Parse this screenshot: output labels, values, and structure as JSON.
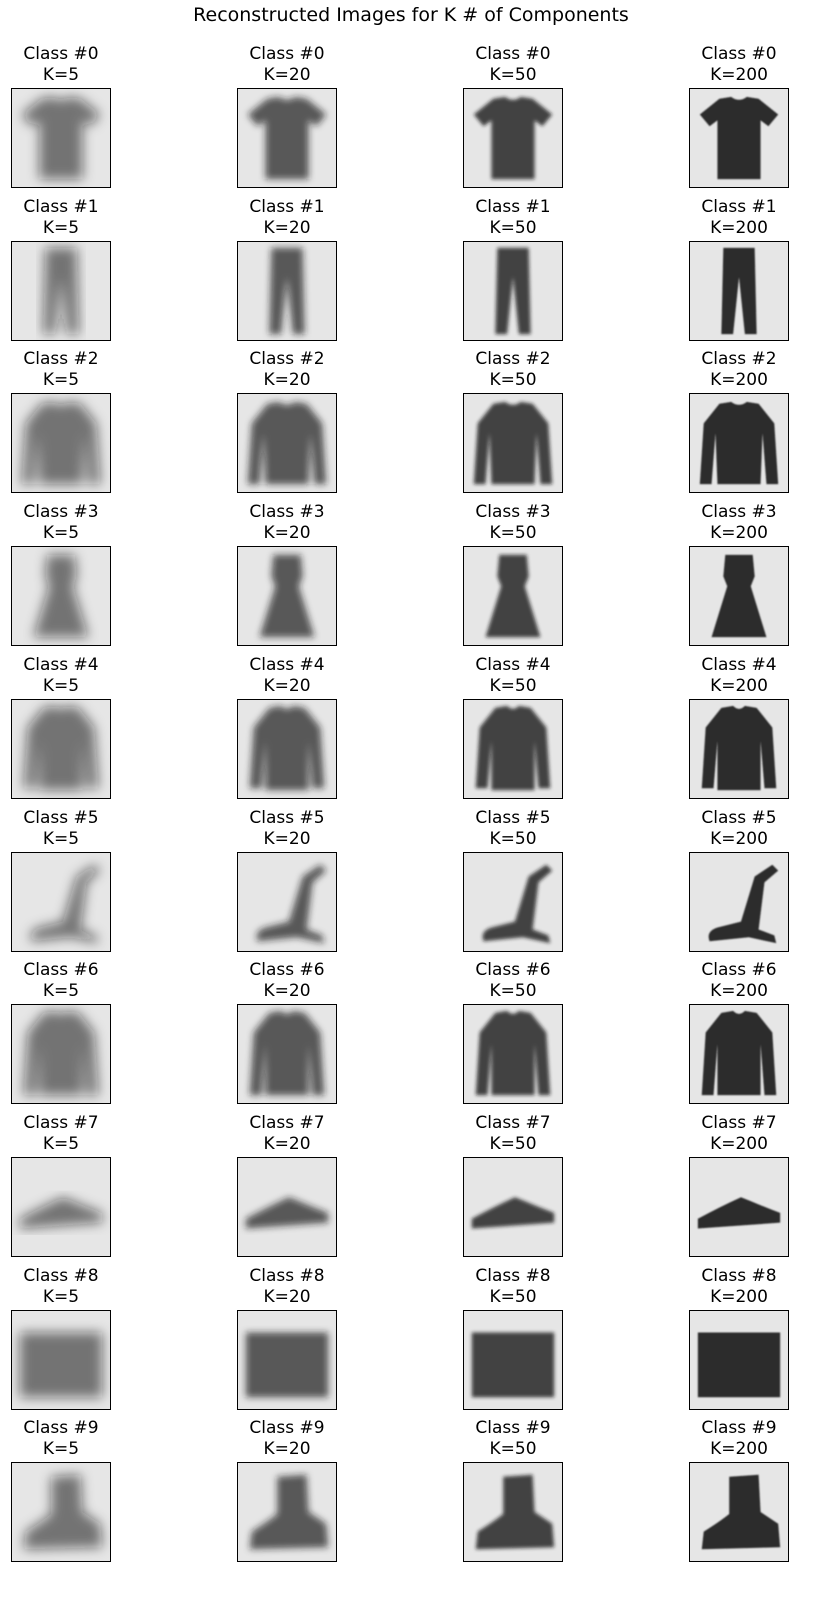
{
  "figure_title": "Reconstructed Images for K # of Components",
  "k_values": [
    5,
    20,
    50,
    200
  ],
  "columns": [
    "K=5",
    "K=20",
    "K=50",
    "K=200"
  ],
  "rows": [
    {
      "class_label": "Class #0",
      "garment": "tshirt"
    },
    {
      "class_label": "Class #1",
      "garment": "trouser"
    },
    {
      "class_label": "Class #2",
      "garment": "pullover"
    },
    {
      "class_label": "Class #3",
      "garment": "dress"
    },
    {
      "class_label": "Class #4",
      "garment": "coat"
    },
    {
      "class_label": "Class #5",
      "garment": "sandal"
    },
    {
      "class_label": "Class #6",
      "garment": "shirt"
    },
    {
      "class_label": "Class #7",
      "garment": "sneaker"
    },
    {
      "class_label": "Class #8",
      "garment": "bag"
    },
    {
      "class_label": "Class #9",
      "garment": "boot"
    }
  ],
  "colors": {
    "background": "#ffffff",
    "tile_bg": "#e6e6e6",
    "ink": "#1a1a1a"
  }
}
